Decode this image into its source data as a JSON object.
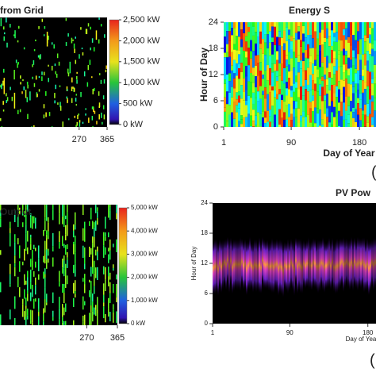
{
  "chart_data": [
    {
      "type": "heatmap",
      "title": "from Grid",
      "xlim": [
        1,
        365
      ],
      "xticks": [
        270,
        365
      ],
      "clim": [
        0,
        2500
      ],
      "cticks": [
        {
          "value": 2500,
          "label": "2,500 kW"
        },
        {
          "value": 2000,
          "label": "2,000 kW"
        },
        {
          "value": 1500,
          "label": "1,500 kW"
        },
        {
          "value": 1000,
          "label": "1,000 kW"
        },
        {
          "value": 500,
          "label": "500 kW"
        },
        {
          "value": 0,
          "label": "0 kW"
        }
      ]
    },
    {
      "type": "heatmap",
      "title": "Energy S",
      "xlabel": "Day of Year",
      "ylabel": "Hour of Day",
      "xlim": [
        1,
        365
      ],
      "xticks": [
        1,
        90,
        180
      ],
      "ylim": [
        0,
        24
      ],
      "yticks": [
        0,
        6,
        12,
        18,
        24
      ],
      "label": "("
    },
    {
      "type": "heatmap",
      "title": "Output",
      "xlim": [
        1,
        365
      ],
      "xticks": [
        270,
        365
      ],
      "clim": [
        0,
        5000
      ],
      "cticks": [
        {
          "value": 5000,
          "label": "5,000 kW"
        },
        {
          "value": 4000,
          "label": "4,000 kW"
        },
        {
          "value": 3000,
          "label": "3,000 kW"
        },
        {
          "value": 2000,
          "label": "2,000 kW"
        },
        {
          "value": 1000,
          "label": "1,000 kW"
        },
        {
          "value": 0,
          "label": "0 kW"
        }
      ]
    },
    {
      "type": "heatmap",
      "title": "PV Pow",
      "xlabel": "Day of Yea",
      "ylabel": "Hour of Day",
      "xlim": [
        1,
        365
      ],
      "xticks": [
        1,
        90,
        180
      ],
      "ylim": [
        0,
        24
      ],
      "yticks": [
        0,
        6,
        12,
        18,
        24
      ],
      "label": "("
    }
  ]
}
